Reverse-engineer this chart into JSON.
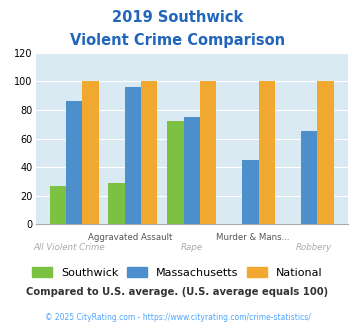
{
  "title_line1": "2019 Southwick",
  "title_line2": "Violent Crime Comparison",
  "southwick": [
    27,
    29,
    72,
    null,
    null
  ],
  "massachusetts": [
    86,
    96,
    75,
    45,
    65
  ],
  "national": [
    100,
    100,
    100,
    100,
    100
  ],
  "colors": {
    "southwick": "#7dc142",
    "massachusetts": "#4d8fcc",
    "national": "#f0a830"
  },
  "ylim": [
    0,
    120
  ],
  "yticks": [
    0,
    20,
    40,
    60,
    80,
    100,
    120
  ],
  "title_color": "#2266bb",
  "bg_color": "#daeaf3",
  "top_labels": [
    "",
    "Aggravated Assault",
    "",
    "Murder & Mans...",
    ""
  ],
  "bottom_labels": [
    "All Violent Crime",
    "",
    "Rape",
    "",
    "Robbery"
  ],
  "subtitle_text": "Compared to U.S. average. (U.S. average equals 100)",
  "footer_text": "© 2025 CityRating.com - https://www.cityrating.com/crime-statistics/",
  "subtitle_color": "#333333",
  "footer_color": "#4da6ff"
}
